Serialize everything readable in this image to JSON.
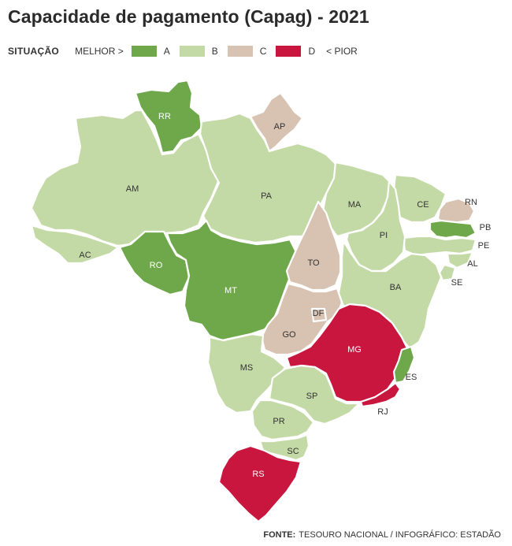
{
  "title": "Capacidade de pagamento (Capag) - 2021",
  "legend": {
    "label": "SITUAÇÃO",
    "better": "MELHOR >",
    "worse": "< PIOR",
    "items": [
      {
        "grade": "A",
        "color": "#6fa84a"
      },
      {
        "grade": "B",
        "color": "#c4daa6"
      },
      {
        "grade": "C",
        "color": "#d8c2b1"
      },
      {
        "grade": "D",
        "color": "#c8163e"
      }
    ]
  },
  "states": [
    {
      "uf": "RR",
      "grade": "A"
    },
    {
      "uf": "AP",
      "grade": "C"
    },
    {
      "uf": "AM",
      "grade": "B"
    },
    {
      "uf": "PA",
      "grade": "B"
    },
    {
      "uf": "MA",
      "grade": "B"
    },
    {
      "uf": "CE",
      "grade": "B"
    },
    {
      "uf": "RN",
      "grade": "C"
    },
    {
      "uf": "PB",
      "grade": "A"
    },
    {
      "uf": "PE",
      "grade": "B"
    },
    {
      "uf": "AL",
      "grade": "B"
    },
    {
      "uf": "SE",
      "grade": "B"
    },
    {
      "uf": "PI",
      "grade": "B"
    },
    {
      "uf": "AC",
      "grade": "B"
    },
    {
      "uf": "RO",
      "grade": "A"
    },
    {
      "uf": "MT",
      "grade": "A"
    },
    {
      "uf": "TO",
      "grade": "C"
    },
    {
      "uf": "BA",
      "grade": "B"
    },
    {
      "uf": "DF",
      "grade": "C"
    },
    {
      "uf": "GO",
      "grade": "C"
    },
    {
      "uf": "MG",
      "grade": "D"
    },
    {
      "uf": "ES",
      "grade": "A"
    },
    {
      "uf": "RJ",
      "grade": "D"
    },
    {
      "uf": "MS",
      "grade": "B"
    },
    {
      "uf": "SP",
      "grade": "B"
    },
    {
      "uf": "PR",
      "grade": "B"
    },
    {
      "uf": "SC",
      "grade": "B"
    },
    {
      "uf": "RS",
      "grade": "D"
    }
  ],
  "source": {
    "label": "FONTE:",
    "text": "TESOURO NACIONAL  / INFOGRÁFICO: ESTADÃO"
  }
}
